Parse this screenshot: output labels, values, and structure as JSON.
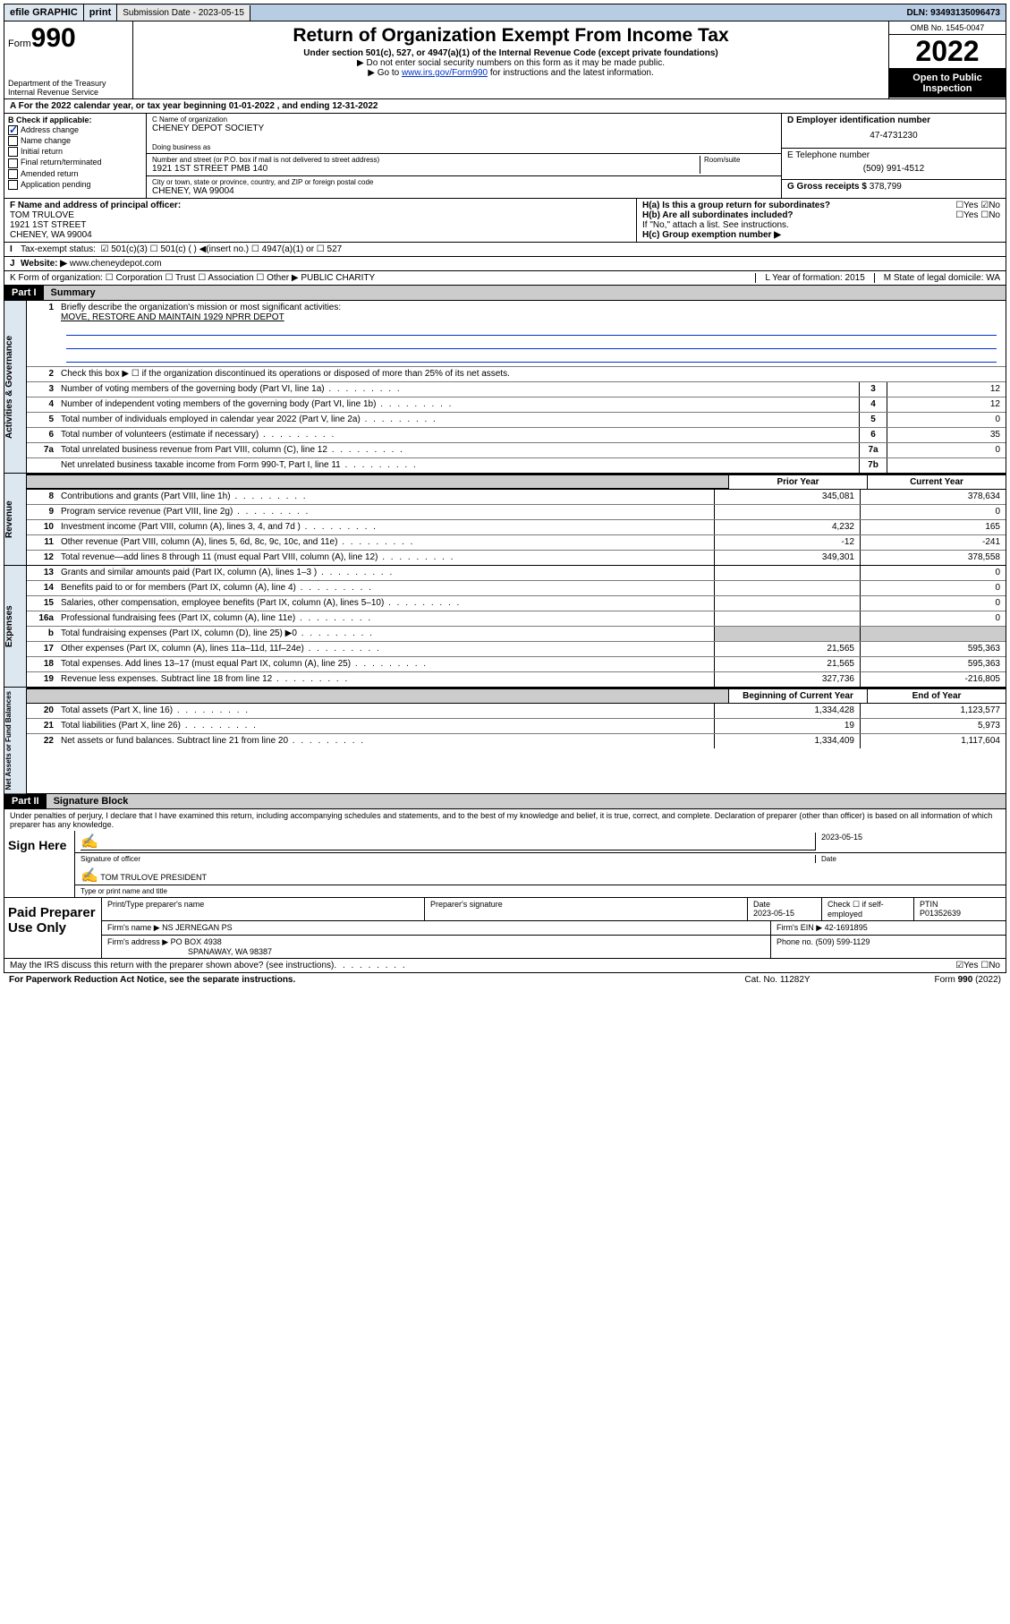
{
  "topbar": {
    "efile": "efile GRAPHIC",
    "print": "print",
    "submission": "Submission Date - 2023-05-15",
    "dln": "DLN: 93493135096473"
  },
  "header": {
    "form": "Form",
    "formnum": "990",
    "dept": "Department of the Treasury Internal Revenue Service",
    "title": "Return of Organization Exempt From Income Tax",
    "sub": "Under section 501(c), 527, or 4947(a)(1) of the Internal Revenue Code (except private foundations)",
    "note1": "▶ Do not enter social security numbers on this form as it may be made public.",
    "note2_pre": "▶ Go to ",
    "note2_link": "www.irs.gov/Form990",
    "note2_post": " for instructions and the latest information.",
    "omb": "OMB No. 1545-0047",
    "year": "2022",
    "open": "Open to Public Inspection"
  },
  "rowA": "A For the 2022 calendar year, or tax year beginning 01-01-2022     , and ending 12-31-2022",
  "colB": {
    "label": "B Check if applicable:",
    "items": [
      "Address change",
      "Name change",
      "Initial return",
      "Final return/terminated",
      "Amended return",
      "Application pending"
    ],
    "checked": [
      true,
      false,
      false,
      false,
      false,
      false
    ]
  },
  "colC": {
    "name_lbl": "C Name of organization",
    "name": "CHENEY DEPOT SOCIETY",
    "dba_lbl": "Doing business as",
    "addr_lbl": "Number and street (or P.O. box if mail is not delivered to street address)",
    "addr": "1921 1ST STREET PMB 140",
    "room_lbl": "Room/suite",
    "city_lbl": "City or town, state or province, country, and ZIP or foreign postal code",
    "city": "CHENEY, WA  99004"
  },
  "colDE": {
    "d_lbl": "D Employer identification number",
    "ein": "47-4731230",
    "e_lbl": "E Telephone number",
    "phone": "(509) 991-4512",
    "g_lbl": "G Gross receipts $",
    "gross": "378,799"
  },
  "rowF": {
    "lbl": "F Name and address of principal officer:",
    "name": "TOM TRULOVE",
    "addr1": "1921 1ST STREET",
    "addr2": "CHENEY, WA  99004"
  },
  "rowH": {
    "ha": "H(a)  Is this a group return for subordinates?",
    "ha_ans": "☐Yes ☑No",
    "hb": "H(b)  Are all subordinates included?",
    "hb_ans": "☐Yes ☐No",
    "hb_note": "If \"No,\" attach a list. See instructions.",
    "hc": "H(c)  Group exemption number ▶"
  },
  "rowI": {
    "lbl": "Tax-exempt status:",
    "opts": "☑ 501(c)(3)   ☐ 501(c) (  ) ◀(insert no.)    ☐ 4947(a)(1) or  ☐ 527"
  },
  "rowJ": {
    "lbl": "Website: ▶",
    "val": "www.cheneydepot.com"
  },
  "rowK": {
    "lbl": "K Form of organization:  ☐ Corporation  ☐ Trust  ☐ Association  ☐ Other ▶",
    "val": "PUBLIC CHARITY",
    "l": "L Year of formation: 2015",
    "m": "M State of legal domicile: WA"
  },
  "part1": {
    "hdr": "Part I",
    "title": "Summary",
    "q1": "Briefly describe the organization's mission or most significant activities:",
    "mission": "MOVE, RESTORE AND MAINTAIN 1929 NPRR DEPOT",
    "q2": "Check this box ▶ ☐  if the organization discontinued its operations or disposed of more than 25% of its net assets."
  },
  "gov_rows": [
    {
      "n": "3",
      "d": "Number of voting members of the governing body (Part VI, line 1a)",
      "box": "3",
      "v": "12"
    },
    {
      "n": "4",
      "d": "Number of independent voting members of the governing body (Part VI, line 1b)",
      "box": "4",
      "v": "12"
    },
    {
      "n": "5",
      "d": "Total number of individuals employed in calendar year 2022 (Part V, line 2a)",
      "box": "5",
      "v": "0"
    },
    {
      "n": "6",
      "d": "Total number of volunteers (estimate if necessary)",
      "box": "6",
      "v": "35"
    },
    {
      "n": "7a",
      "d": "Total unrelated business revenue from Part VIII, column (C), line 12",
      "box": "7a",
      "v": "0"
    },
    {
      "n": "",
      "d": "Net unrelated business taxable income from Form 990-T, Part I, line 11",
      "box": "7b",
      "v": ""
    }
  ],
  "col_hdrs": {
    "prior": "Prior Year",
    "current": "Current Year"
  },
  "rev_rows": [
    {
      "n": "8",
      "d": "Contributions and grants (Part VIII, line 1h)",
      "p": "345,081",
      "c": "378,634"
    },
    {
      "n": "9",
      "d": "Program service revenue (Part VIII, line 2g)",
      "p": "",
      "c": "0"
    },
    {
      "n": "10",
      "d": "Investment income (Part VIII, column (A), lines 3, 4, and 7d )",
      "p": "4,232",
      "c": "165"
    },
    {
      "n": "11",
      "d": "Other revenue (Part VIII, column (A), lines 5, 6d, 8c, 9c, 10c, and 11e)",
      "p": "-12",
      "c": "-241"
    },
    {
      "n": "12",
      "d": "Total revenue—add lines 8 through 11 (must equal Part VIII, column (A), line 12)",
      "p": "349,301",
      "c": "378,558"
    }
  ],
  "exp_rows": [
    {
      "n": "13",
      "d": "Grants and similar amounts paid (Part IX, column (A), lines 1–3 )",
      "p": "",
      "c": "0"
    },
    {
      "n": "14",
      "d": "Benefits paid to or for members (Part IX, column (A), line 4)",
      "p": "",
      "c": "0"
    },
    {
      "n": "15",
      "d": "Salaries, other compensation, employee benefits (Part IX, column (A), lines 5–10)",
      "p": "",
      "c": "0"
    },
    {
      "n": "16a",
      "d": "Professional fundraising fees (Part IX, column (A), line 11e)",
      "p": "",
      "c": "0"
    },
    {
      "n": "b",
      "d": "Total fundraising expenses (Part IX, column (D), line 25) ▶0",
      "p": "shade",
      "c": "shade"
    },
    {
      "n": "17",
      "d": "Other expenses (Part IX, column (A), lines 11a–11d, 11f–24e)",
      "p": "21,565",
      "c": "595,363"
    },
    {
      "n": "18",
      "d": "Total expenses. Add lines 13–17 (must equal Part IX, column (A), line 25)",
      "p": "21,565",
      "c": "595,363"
    },
    {
      "n": "19",
      "d": "Revenue less expenses. Subtract line 18 from line 12",
      "p": "327,736",
      "c": "-216,805"
    }
  ],
  "net_hdrs": {
    "beg": "Beginning of Current Year",
    "end": "End of Year"
  },
  "net_rows": [
    {
      "n": "20",
      "d": "Total assets (Part X, line 16)",
      "p": "1,334,428",
      "c": "1,123,577"
    },
    {
      "n": "21",
      "d": "Total liabilities (Part X, line 26)",
      "p": "19",
      "c": "5,973"
    },
    {
      "n": "22",
      "d": "Net assets or fund balances. Subtract line 21 from line 20",
      "p": "1,334,409",
      "c": "1,117,604"
    }
  ],
  "part2": {
    "hdr": "Part II",
    "title": "Signature Block",
    "decl": "Under penalties of perjury, I declare that I have examined this return, including accompanying schedules and statements, and to the best of my knowledge and belief, it is true, correct, and complete. Declaration of preparer (other than officer) is based on all information of which preparer has any knowledge."
  },
  "sign": {
    "here": "Sign Here",
    "sig_lbl": "Signature of officer",
    "date_lbl": "Date",
    "date": "2023-05-15",
    "name": "TOM TRULOVE PRESIDENT",
    "name_lbl": "Type or print name and title"
  },
  "paid": {
    "hdr": "Paid Preparer Use Only",
    "h1": "Print/Type preparer's name",
    "h2": "Preparer's signature",
    "h3": "Date",
    "h3v": "2023-05-15",
    "h4": "Check ☐ if self-employed",
    "h5": "PTIN",
    "ptin": "P01352639",
    "firm_lbl": "Firm's name   ▶",
    "firm": "NS JERNEGAN PS",
    "ein_lbl": "Firm's EIN ▶",
    "ein": "42-1691895",
    "addr_lbl": "Firm's address ▶",
    "addr": "PO BOX 4938",
    "addr2": "SPANAWAY, WA  98387",
    "ph_lbl": "Phone no.",
    "ph": "(509) 599-1129"
  },
  "discuss": "May the IRS discuss this return with the preparer shown above? (see instructions)",
  "discuss_ans": "☑Yes  ☐No",
  "footer": {
    "l": "For Paperwork Reduction Act Notice, see the separate instructions.",
    "c": "Cat. No. 11282Y",
    "r": "Form 990 (2022)"
  },
  "vsides": {
    "gov": "Activities & Governance",
    "rev": "Revenue",
    "exp": "Expenses",
    "net": "Net Assets or Fund Balances"
  }
}
